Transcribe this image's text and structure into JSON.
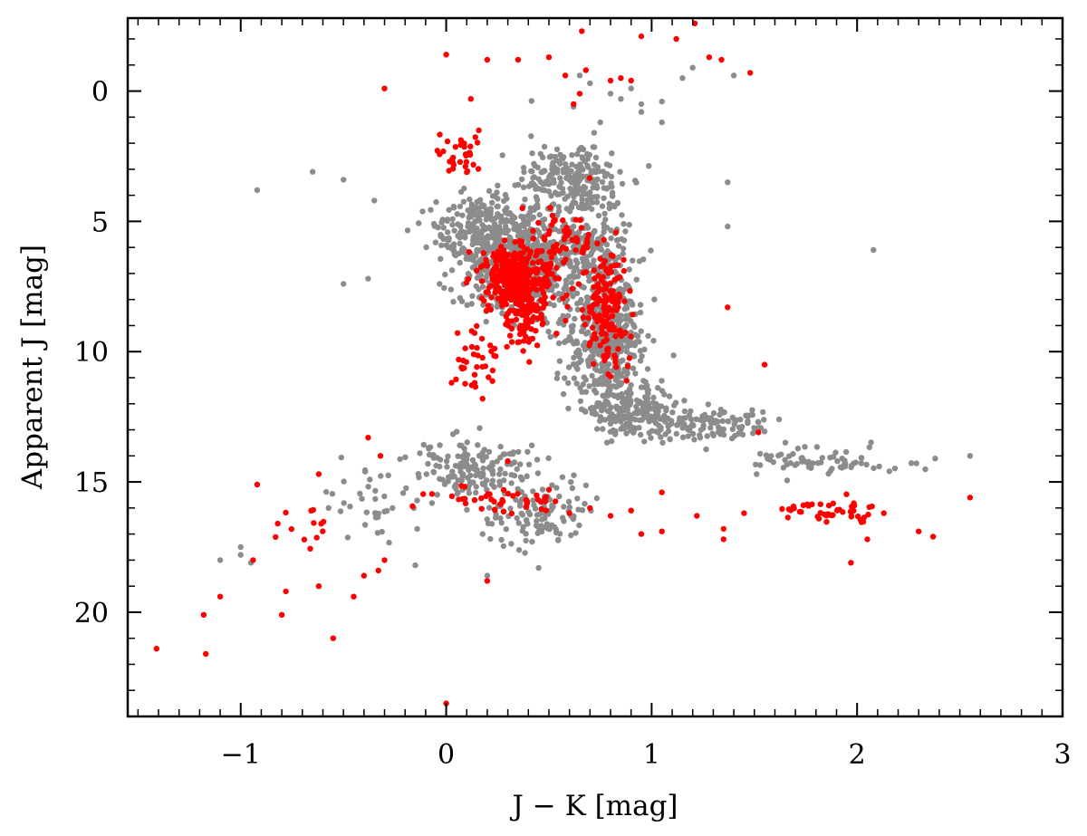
{
  "chart_data": {
    "type": "scatter",
    "xlabel": "J − K [mag]",
    "ylabel": "Apparent  J [mag]",
    "xlim": [
      -1.55,
      3.0
    ],
    "ylim": [
      24.0,
      -2.8
    ],
    "y_inverted": true,
    "grid": false,
    "legend": "none",
    "x_ticks": [
      -1,
      0,
      1,
      2,
      3
    ],
    "x_tick_labels": [
      "−1",
      "0",
      "1",
      "2",
      "3"
    ],
    "y_ticks": [
      0,
      5,
      10,
      15,
      20
    ],
    "y_tick_labels": [
      "0",
      "5",
      "10",
      "15",
      "20"
    ],
    "series": [
      {
        "color": "#8c8c8c",
        "regions": [
          {
            "points": [
              [
                0.62,
                0.6
              ],
              [
                0.75,
                1.2
              ],
              [
                0.85,
                0.3
              ],
              [
                0.95,
                0.8
              ],
              [
                0.7,
                -0.3
              ],
              [
                0.8,
                0.1
              ],
              [
                1.05,
                0.4
              ],
              [
                1.15,
                -0.5
              ],
              [
                1.2,
                -0.9
              ],
              [
                0.9,
                -0.1
              ],
              [
                0.65,
                -0.6
              ],
              [
                0.72,
                1.6
              ]
            ]
          },
          {
            "center": [
              0.62,
              3.4
            ],
            "spread": [
              0.22,
              1.2
            ],
            "count": 220
          },
          {
            "center": [
              0.35,
              6.4
            ],
            "spread": [
              0.25,
              1.7
            ],
            "count": 620
          },
          {
            "center": [
              0.15,
              5.2
            ],
            "spread": [
              0.18,
              1.0
            ],
            "count": 140
          },
          {
            "center": [
              0.78,
              9.6
            ],
            "spread": [
              0.17,
              2.1
            ],
            "count": 420
          },
          {
            "center": [
              0.72,
              6.2
            ],
            "spread": [
              0.16,
              1.6
            ],
            "count": 160
          },
          {
            "center": [
              0.9,
              12.3
            ],
            "spread": [
              0.17,
              0.8
            ],
            "count": 180
          },
          {
            "center": [
              1.25,
              12.8
            ],
            "spread": [
              0.28,
              0.55
            ],
            "count": 130
          },
          {
            "center": [
              1.85,
              14.2
            ],
            "spread": [
              0.28,
              0.45
            ],
            "count": 70
          },
          {
            "center": [
              0.15,
              14.5
            ],
            "spread": [
              0.25,
              0.9
            ],
            "count": 150
          },
          {
            "center": [
              0.45,
              16.3
            ],
            "spread": [
              0.25,
              1.0
            ],
            "count": 110
          },
          {
            "center": [
              -0.35,
              15.8
            ],
            "spread": [
              0.22,
              1.4
            ],
            "count": 40
          },
          {
            "points": [
              [
                -0.92,
                3.8
              ],
              [
                -0.65,
                3.1
              ],
              [
                -0.5,
                3.4
              ],
              [
                -0.35,
                4.2
              ],
              [
                -0.5,
                7.4
              ],
              [
                -0.38,
                7.2
              ],
              [
                1.37,
                3.5
              ],
              [
                1.37,
                5.2
              ],
              [
                2.08,
                6.1
              ],
              [
                0.95,
                0.5
              ],
              [
                1.05,
                1.2
              ],
              [
                1.4,
                -0.6
              ],
              [
                -1.0,
                17.5
              ],
              [
                -1.1,
                18.0
              ],
              [
                -0.95,
                18.1
              ],
              [
                -1.0,
                17.8
              ],
              [
                2.55,
                14.0
              ],
              [
                2.38,
                14.1
              ],
              [
                0.2,
                18.6
              ],
              [
                0.45,
                18.3
              ],
              [
                -0.15,
                18.2
              ]
            ]
          }
        ]
      },
      {
        "color": "#ff0000",
        "regions": [
          {
            "points": [
              [
                0.0,
                -1.4
              ],
              [
                0.2,
                -1.2
              ],
              [
                0.35,
                -1.2
              ],
              [
                0.5,
                -1.3
              ],
              [
                0.66,
                -2.3
              ],
              [
                0.95,
                -2.1
              ],
              [
                1.12,
                -2.0
              ],
              [
                1.21,
                -2.6
              ],
              [
                1.28,
                -1.3
              ],
              [
                1.34,
                -1.2
              ],
              [
                1.48,
                -0.7
              ],
              [
                -0.3,
                -0.1
              ],
              [
                0.12,
                0.3
              ],
              [
                0.62,
                0.5
              ],
              [
                0.65,
                0.1
              ],
              [
                0.68,
                -0.8
              ],
              [
                0.8,
                -0.4
              ],
              [
                0.85,
                -0.5
              ],
              [
                0.9,
                -0.4
              ],
              [
                0.58,
                -0.6
              ]
            ]
          },
          {
            "center": [
              0.08,
              2.4
            ],
            "spread": [
              0.12,
              0.8
            ],
            "count": 35
          },
          {
            "center": [
              0.33,
              7.1
            ],
            "spread": [
              0.12,
              0.9
            ],
            "count": 330
          },
          {
            "center": [
              0.38,
              8.4
            ],
            "spread": [
              0.14,
              1.3
            ],
            "count": 120
          },
          {
            "center": [
              0.78,
              8.4
            ],
            "spread": [
              0.09,
              1.6
            ],
            "count": 160
          },
          {
            "center": [
              0.55,
              5.8
            ],
            "spread": [
              0.15,
              1.2
            ],
            "count": 70
          },
          {
            "center": [
              0.15,
              10.2
            ],
            "spread": [
              0.12,
              0.9
            ],
            "count": 35
          },
          {
            "center": [
              0.25,
              15.7
            ],
            "spread": [
              0.26,
              0.4
            ],
            "count": 45
          },
          {
            "center": [
              1.9,
              16.1
            ],
            "spread": [
              0.22,
              0.4
            ],
            "count": 45
          },
          {
            "center": [
              -0.65,
              16.7
            ],
            "spread": [
              0.12,
              0.6
            ],
            "count": 12
          },
          {
            "points": [
              [
                -1.41,
                21.4
              ],
              [
                -1.18,
                20.1
              ],
              [
                -1.17,
                21.6
              ],
              [
                -1.1,
                19.4
              ],
              [
                -0.92,
                15.1
              ],
              [
                -0.94,
                18.0
              ],
              [
                -0.82,
                16.6
              ],
              [
                -0.8,
                20.1
              ],
              [
                -0.78,
                19.2
              ],
              [
                -0.62,
                19.0
              ],
              [
                -0.55,
                21.0
              ],
              [
                -0.45,
                19.4
              ],
              [
                -0.4,
                18.6
              ],
              [
                -0.38,
                13.3
              ],
              [
                -0.32,
                14.0
              ],
              [
                -0.33,
                18.4
              ],
              [
                -0.3,
                18.0
              ],
              [
                0.0,
                23.5
              ],
              [
                0.2,
                18.8
              ],
              [
                -0.62,
                14.7
              ],
              [
                0.3,
                14.2
              ],
              [
                0.5,
                15.3
              ],
              [
                1.37,
                8.3
              ],
              [
                1.55,
                10.5
              ],
              [
                1.52,
                13.1
              ],
              [
                1.45,
                16.2
              ],
              [
                1.22,
                16.3
              ],
              [
                1.05,
                16.9
              ],
              [
                0.95,
                17.0
              ],
              [
                1.35,
                16.8
              ],
              [
                1.35,
                17.2
              ],
              [
                1.05,
                15.4
              ],
              [
                2.3,
                16.9
              ],
              [
                2.37,
                17.1
              ],
              [
                2.55,
                15.6
              ],
              [
                1.97,
                18.1
              ],
              [
                2.05,
                17.2
              ],
              [
                2.13,
                16.2
              ],
              [
                0.7,
                16.0
              ],
              [
                0.9,
                16.1
              ],
              [
                0.8,
                16.3
              ],
              [
                0.6,
                16.2
              ]
            ]
          }
        ]
      }
    ]
  }
}
